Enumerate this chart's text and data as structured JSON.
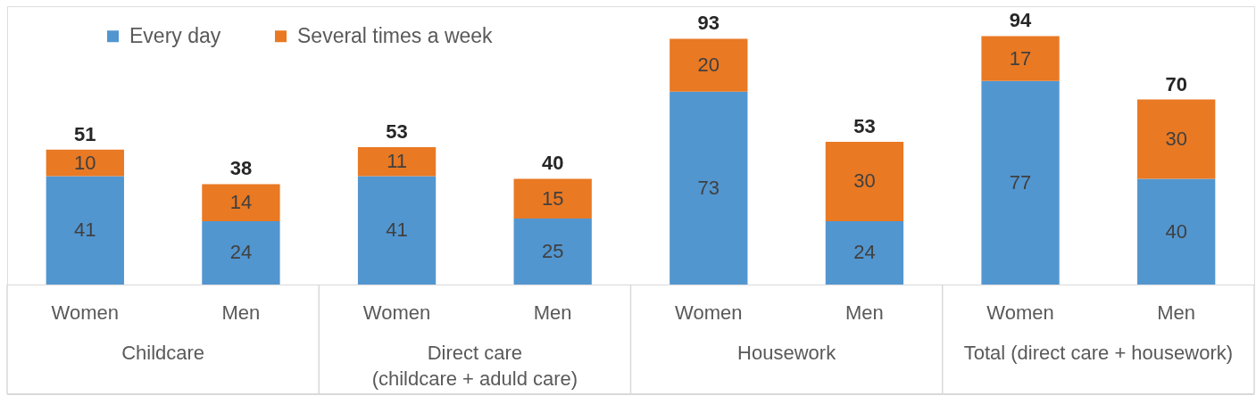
{
  "chart_data": {
    "type": "bar",
    "stacked": true,
    "data_labels": true,
    "legend": "top left",
    "grid": false,
    "categories": [
      "Women",
      "Men",
      "Women",
      "Men",
      "Women",
      "Men",
      "Women",
      "Men"
    ],
    "series": [
      {
        "name": "Every day",
        "color": "#5296d0",
        "values": [
          41,
          24,
          41,
          25,
          73,
          24,
          77,
          40
        ]
      },
      {
        "name": "Several times a week",
        "color": "#e97923",
        "values": [
          10,
          14,
          11,
          15,
          20,
          30,
          17,
          30
        ]
      }
    ],
    "totals": [
      "51",
      "38",
      "53",
      "40",
      "93",
      "53",
      "94",
      "70"
    ],
    "annotations": [
      "Childcare",
      "Direct care\n(childcare + aduld care)",
      "Housework",
      "Total (direct care + housework)"
    ]
  }
}
